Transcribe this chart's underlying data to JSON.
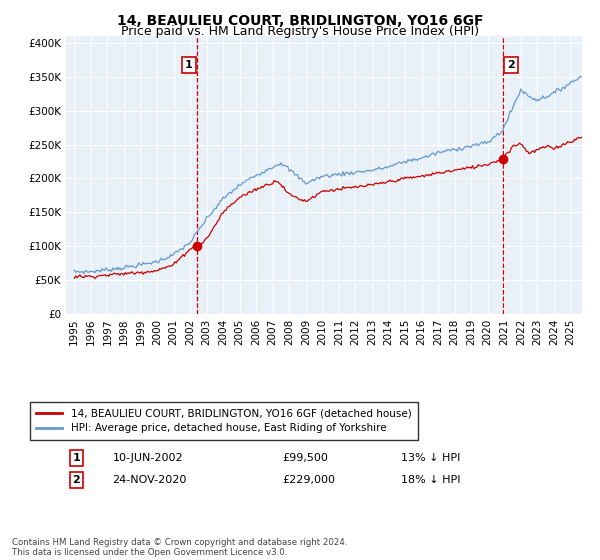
{
  "title": "14, BEAULIEU COURT, BRIDLINGTON, YO16 6GF",
  "subtitle": "Price paid vs. HM Land Registry's House Price Index (HPI)",
  "ylim": [
    0,
    410000
  ],
  "xlim_start": 1994.5,
  "xlim_end": 2025.7,
  "purchase1_date": 2002.44,
  "purchase1_price": 99500,
  "purchase2_date": 2020.9,
  "purchase2_price": 229000,
  "legend_label_red": "14, BEAULIEU COURT, BRIDLINGTON, YO16 6GF (detached house)",
  "legend_label_blue": "HPI: Average price, detached house, East Riding of Yorkshire",
  "annotation1_label": "1",
  "annotation1_date_str": "10-JUN-2002",
  "annotation1_price_str": "£99,500",
  "annotation1_hpi_str": "13% ↓ HPI",
  "annotation2_label": "2",
  "annotation2_date_str": "24-NOV-2020",
  "annotation2_price_str": "£229,000",
  "annotation2_hpi_str": "18% ↓ HPI",
  "footer": "Contains HM Land Registry data © Crown copyright and database right 2024.\nThis data is licensed under the Open Government Licence v3.0.",
  "bg_color": "#dce9f5",
  "plot_bg_color": "#e8f0f8",
  "grid_color": "#ffffff",
  "red_color": "#cc0000",
  "blue_color": "#6699cc",
  "title_fontsize": 10,
  "subtitle_fontsize": 9
}
